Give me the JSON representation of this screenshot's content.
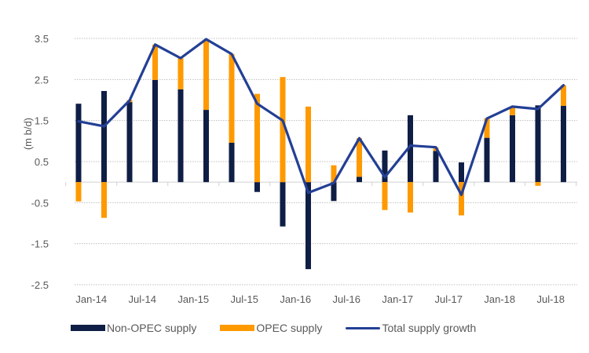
{
  "chart_data": {
    "type": "bar",
    "subtype": "stacked bar with line overlay",
    "title": "",
    "xlabel": "",
    "ylabel": "(m b/d)",
    "ylim": [
      -2.5,
      3.5
    ],
    "yticks": [
      3.5,
      2.5,
      1.5,
      0.5,
      -0.5,
      -1.5,
      -2.5
    ],
    "ytick_labels": [
      "3.5",
      "2.5",
      "1.5",
      "0.5",
      "-0.5",
      "-1.5",
      "-2.5"
    ],
    "grid": "horizontal dotted",
    "legend_position": "bottom",
    "categories": [
      "Jan-14",
      "Apr-14",
      "Jul-14",
      "Oct-14",
      "Jan-15",
      "Apr-15",
      "Jul-15",
      "Oct-15",
      "Jan-16",
      "Apr-16",
      "Jul-16",
      "Oct-16",
      "Jan-17",
      "Apr-17",
      "Jul-17",
      "Oct-17",
      "Jan-18",
      "Apr-18",
      "Jul-18",
      "Oct-18"
    ],
    "xtick_labels": [
      "Jan-14",
      "Jul-14",
      "Jan-15",
      "Jul-15",
      "Jan-16",
      "Jul-16",
      "Jan-17",
      "Jul-17",
      "Jan-18",
      "Jul-18"
    ],
    "series": [
      {
        "name": "Non-OPEC supply",
        "type": "bar",
        "color": "#0f1e45",
        "values": [
          1.91,
          2.22,
          1.95,
          2.49,
          2.26,
          1.76,
          0.96,
          -0.24,
          -1.08,
          -2.12,
          -0.46,
          0.13,
          0.77,
          1.63,
          0.76,
          0.48,
          1.08,
          1.63,
          1.87,
          1.86
        ]
      },
      {
        "name": "OPEC supply",
        "type": "bar",
        "color": "#ff9900",
        "values": [
          -0.47,
          -0.87,
          0.05,
          0.86,
          0.76,
          1.72,
          2.16,
          2.15,
          2.56,
          1.84,
          0.41,
          0.94,
          -0.68,
          -0.74,
          0.08,
          -0.81,
          0.47,
          0.21,
          -0.09,
          0.5
        ]
      },
      {
        "name": "Total supply growth",
        "type": "line",
        "color": "#233f95",
        "values": [
          1.48,
          1.36,
          1.99,
          3.35,
          3.02,
          3.48,
          3.12,
          1.91,
          1.5,
          -0.26,
          -0.02,
          1.07,
          0.12,
          0.89,
          0.85,
          -0.31,
          1.55,
          1.84,
          1.78,
          2.36
        ]
      }
    ]
  },
  "legend": {
    "items": [
      {
        "label": "Non-OPEC supply",
        "kind": "bar",
        "color": "#0f1e45"
      },
      {
        "label": "OPEC supply",
        "kind": "bar",
        "color": "#ff9900"
      },
      {
        "label": "Total supply growth",
        "kind": "line",
        "color": "#233f95"
      }
    ]
  }
}
